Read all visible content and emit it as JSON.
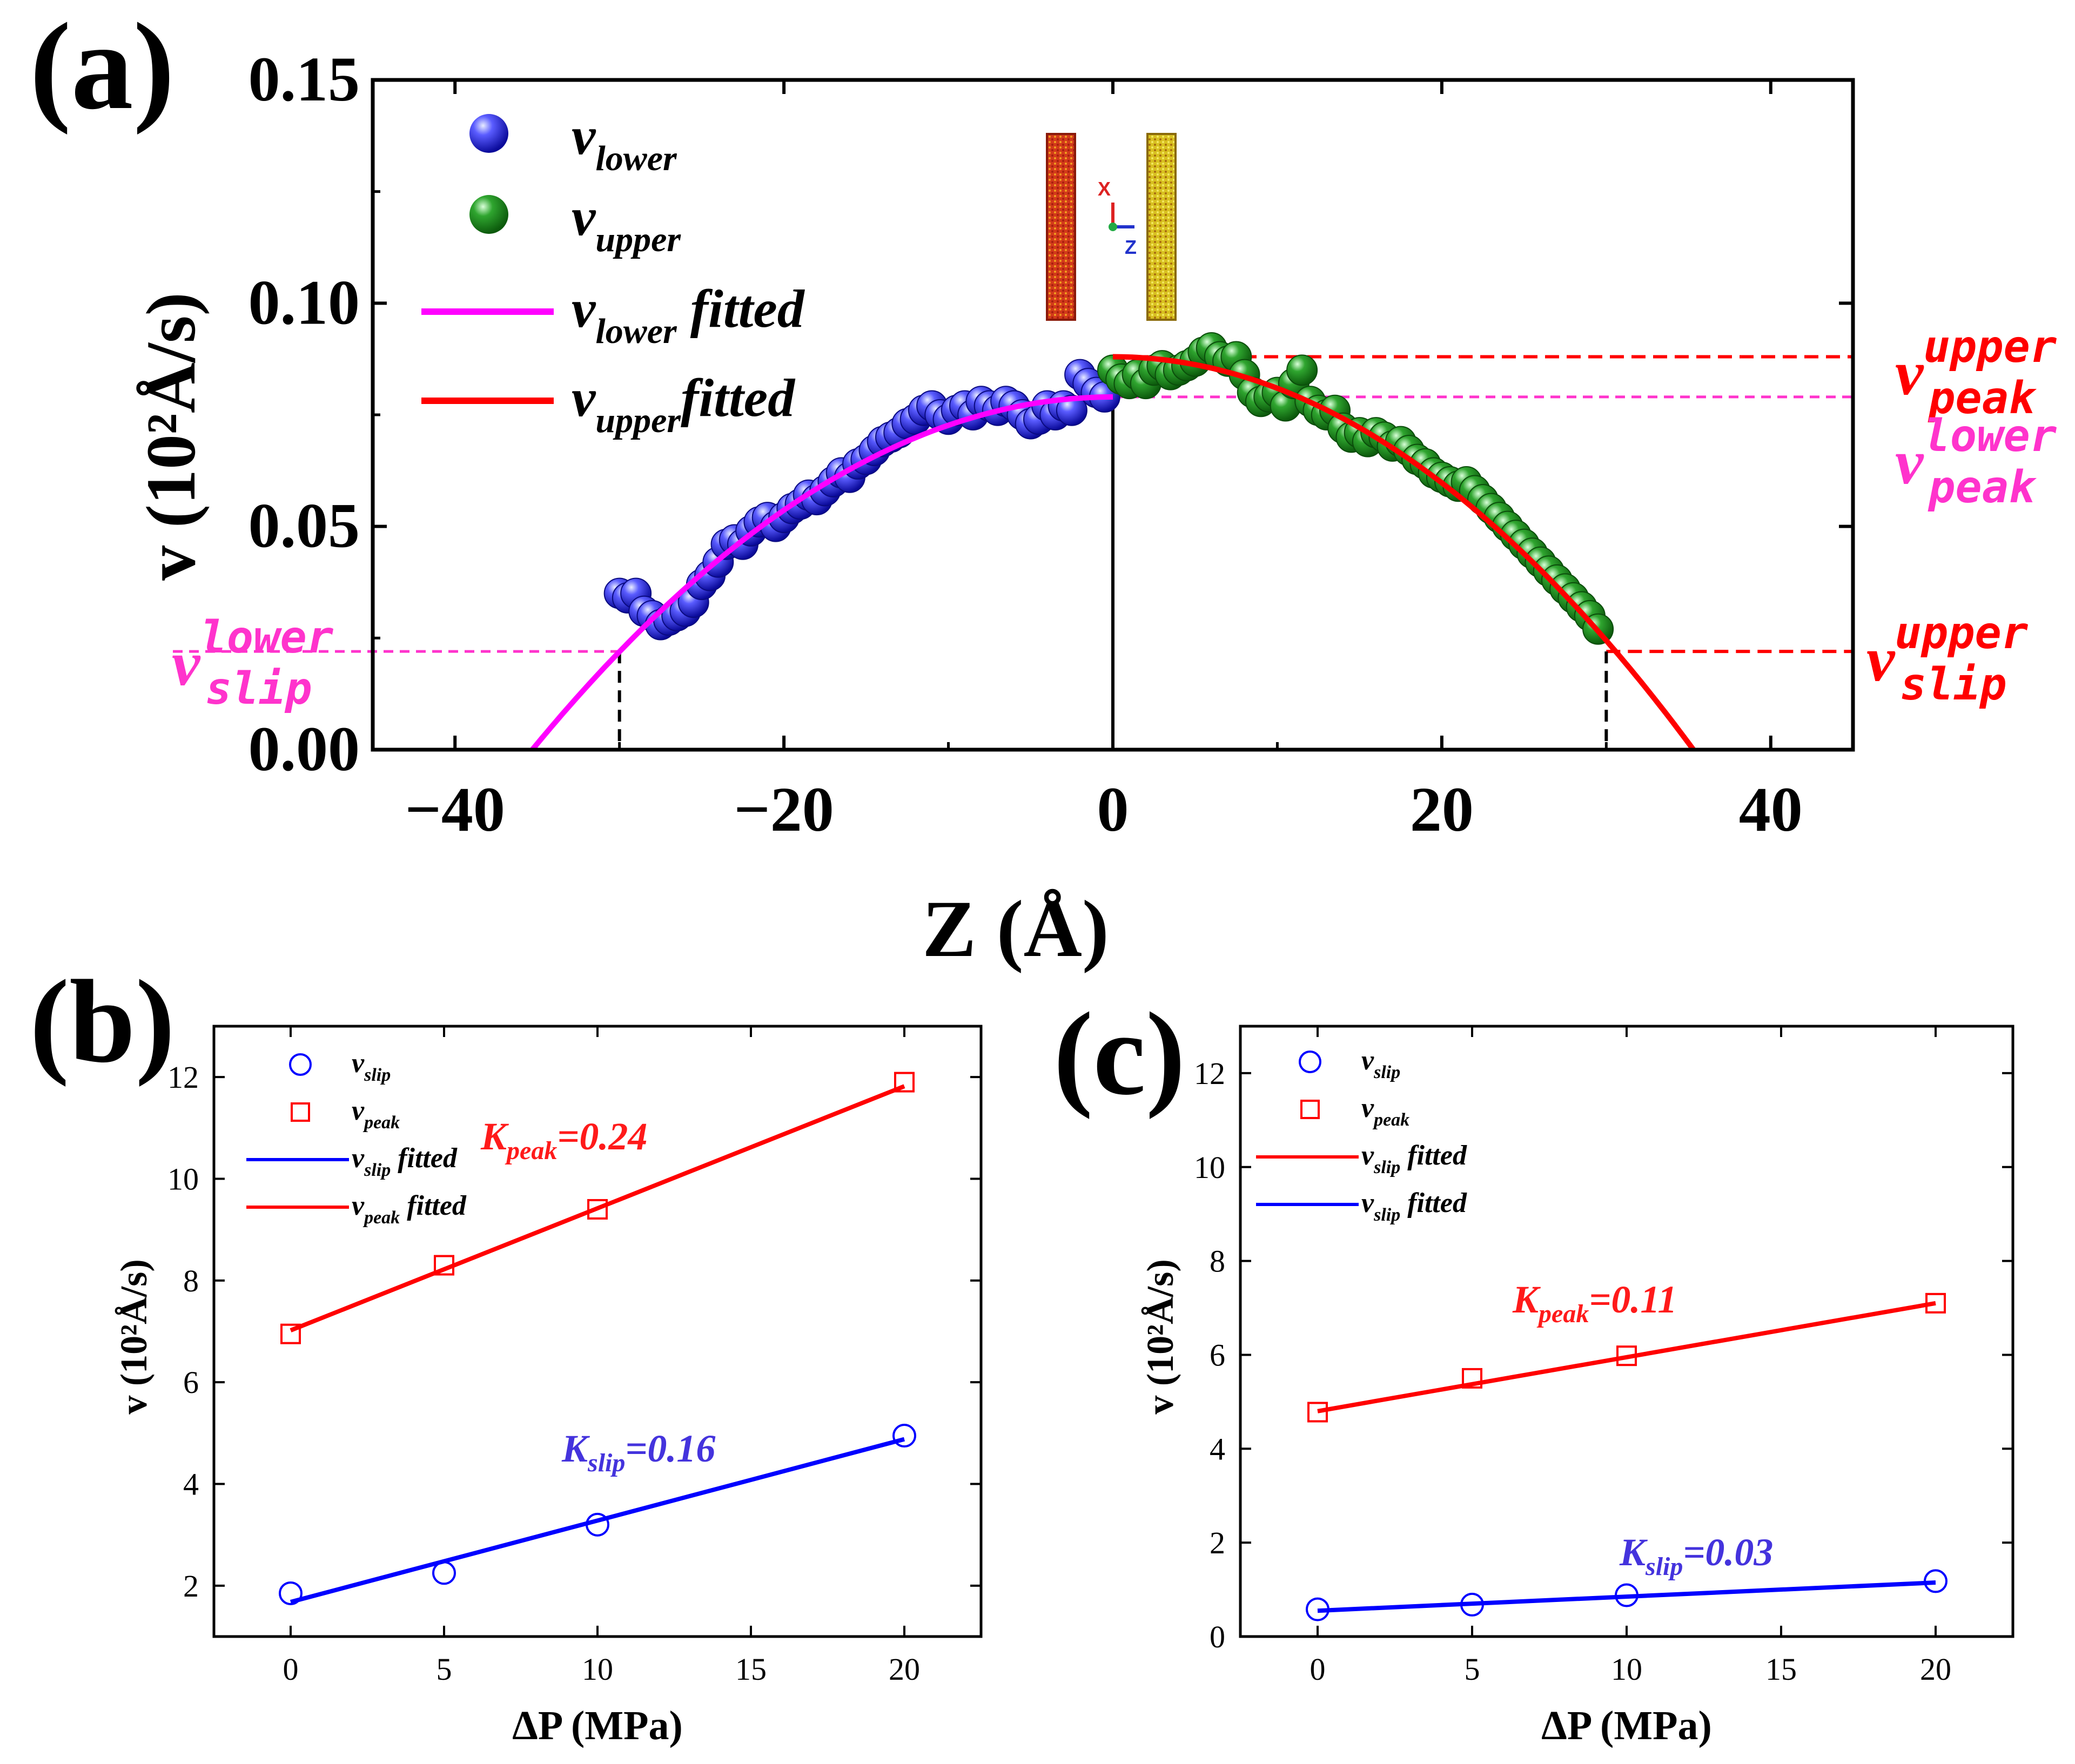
{
  "chart_data": [
    {
      "panel": "(a)",
      "type": "scatter",
      "xlabel": "Z (Å)",
      "ylabel": "v (10²Å/s)",
      "xlim": [
        -45,
        45
      ],
      "ylim": [
        0,
        0.15
      ],
      "xticks": [
        "−40",
        "−20",
        "0",
        "20",
        "40"
      ],
      "yticks": [
        "0.00",
        "0.05",
        "0.10",
        "0.15"
      ],
      "legend_placement": "top-left",
      "legend": [
        {
          "label": "v",
          "sub": "lower",
          "kind": "marker",
          "color": "#1f1fe0"
        },
        {
          "label": "v",
          "sub": "upper",
          "kind": "marker",
          "color": "#1e8a1e"
        },
        {
          "label": "v",
          "sub": "lower",
          "suffix": " fitted",
          "kind": "line",
          "color": "#ff00ff"
        },
        {
          "label": "v",
          "sub": "upper",
          "suffix": "fitted",
          "kind": "line",
          "color": "#ff0000"
        }
      ],
      "inset_axes": {
        "x": "X",
        "z": "Z"
      },
      "annotations": [
        {
          "base": "v",
          "sub": "peak",
          "sup": "upper",
          "color": "#ff0000"
        },
        {
          "base": "v",
          "sub": "peak",
          "sup": "lower",
          "color": "#ff33cc"
        },
        {
          "base": "v",
          "sub": "slip",
          "sup": "upper",
          "color": "#ff0000"
        },
        {
          "base": "v",
          "sub": "slip",
          "sup": "lower",
          "color": "#ff33cc"
        }
      ],
      "series": [
        {
          "name": "v_lower",
          "color": "#1f1fe0",
          "x": [
            -30,
            -29.5,
            -29,
            -28.5,
            -28,
            -27.5,
            -27,
            -26.5,
            -26,
            -25.5,
            -25,
            -24.5,
            -24,
            -23.5,
            -23,
            -22.5,
            -22,
            -21.5,
            -21,
            -20.5,
            -20,
            -19.5,
            -19,
            -18.5,
            -18,
            -17.5,
            -17,
            -16.5,
            -16,
            -15.5,
            -15,
            -14.5,
            -14,
            -13.5,
            -13,
            -12.5,
            -12,
            -11.5,
            -11,
            -10.5,
            -10,
            -9.5,
            -9,
            -8.5,
            -8,
            -7.5,
            -7,
            -6.5,
            -6,
            -5.5,
            -5,
            -4.5,
            -4,
            -3.5,
            -3,
            -2.5,
            -2,
            -1.5,
            -1,
            -0.5
          ],
          "y": [
            0.035,
            0.034,
            0.035,
            0.031,
            0.03,
            0.028,
            0.029,
            0.03,
            0.031,
            0.033,
            0.037,
            0.039,
            0.042,
            0.046,
            0.047,
            0.046,
            0.049,
            0.051,
            0.052,
            0.05,
            0.052,
            0.054,
            0.055,
            0.057,
            0.056,
            0.058,
            0.06,
            0.062,
            0.061,
            0.064,
            0.065,
            0.067,
            0.069,
            0.07,
            0.071,
            0.073,
            0.074,
            0.076,
            0.077,
            0.075,
            0.074,
            0.076,
            0.077,
            0.075,
            0.078,
            0.077,
            0.076,
            0.078,
            0.077,
            0.075,
            0.073,
            0.074,
            0.077,
            0.075,
            0.077,
            0.076,
            0.084,
            0.082,
            0.08,
            0.079
          ]
        },
        {
          "name": "v_upper",
          "color": "#1e8a1e",
          "x": [
            0,
            0.5,
            1,
            1.5,
            2,
            2.5,
            3,
            3.5,
            4,
            4.5,
            5,
            5.5,
            6,
            6.5,
            7,
            7.5,
            8,
            8.5,
            9,
            9.5,
            10,
            10.5,
            11,
            11.5,
            12,
            12.5,
            13,
            13.5,
            14,
            14.5,
            15,
            15.5,
            16,
            16.5,
            17,
            17.5,
            18,
            18.5,
            19,
            19.5,
            20,
            20.5,
            21,
            21.5,
            22,
            22.5,
            23,
            23.5,
            24,
            24.5,
            25,
            25.5,
            26,
            26.5,
            27,
            27.5,
            28,
            28.5,
            29,
            29.5
          ],
          "y": [
            0.085,
            0.083,
            0.082,
            0.084,
            0.082,
            0.085,
            0.086,
            0.084,
            0.085,
            0.086,
            0.087,
            0.089,
            0.09,
            0.088,
            0.087,
            0.088,
            0.084,
            0.08,
            0.078,
            0.079,
            0.08,
            0.077,
            0.082,
            0.085,
            0.078,
            0.076,
            0.075,
            0.076,
            0.072,
            0.07,
            0.071,
            0.069,
            0.071,
            0.07,
            0.068,
            0.069,
            0.067,
            0.065,
            0.064,
            0.062,
            0.061,
            0.06,
            0.059,
            0.06,
            0.058,
            0.056,
            0.054,
            0.052,
            0.05,
            0.048,
            0.046,
            0.044,
            0.042,
            0.04,
            0.038,
            0.036,
            0.034,
            0.032,
            0.03,
            0.027
          ]
        }
      ],
      "fits": [
        {
          "name": "v_lower fitted",
          "color": "#ff00ff",
          "peak": 0.079,
          "root": -35.3,
          "x_range": [
            -35.3,
            0
          ]
        },
        {
          "name": "v_upper fitted",
          "color": "#ff0000",
          "peak": 0.088,
          "root": 35.3,
          "x_range": [
            0,
            35.3
          ]
        }
      ],
      "reference_lines": {
        "v_peak_upper": 0.088,
        "v_peak_lower": 0.079,
        "v_slip_upper": 0.022,
        "v_slip_lower": 0.022,
        "x_wall_left": -30,
        "x_center": 0,
        "x_wall_right": 30
      }
    },
    {
      "panel": "(b)",
      "type": "scatter",
      "xlabel": "ΔP (MPa)",
      "ylabel": "v (10²Å/s)",
      "xlim": [
        -2.5,
        22.5
      ],
      "ylim": [
        1,
        13
      ],
      "xticks": [
        "0",
        "5",
        "10",
        "15",
        "20"
      ],
      "yticks": [
        "2",
        "4",
        "6",
        "8",
        "10",
        "12"
      ],
      "legend_placement": "top-left",
      "legend": [
        {
          "label": "v",
          "sub": "slip",
          "suffix": "",
          "kind": "circle",
          "color": "#0000ff"
        },
        {
          "label": "v",
          "sub": "peak",
          "suffix": "",
          "kind": "square",
          "color": "#ff0000"
        },
        {
          "label": "v",
          "sub": "slip",
          "suffix": " fitted",
          "kind": "line",
          "color": "#0000ff"
        },
        {
          "label": "v",
          "sub": "peak",
          "suffix": " fitted",
          "kind": "line",
          "color": "#ff0000"
        }
      ],
      "annotations": [
        {
          "base": "K",
          "sub": "peak",
          "rest": "=0.24",
          "color": "#ff1a1a"
        },
        {
          "base": "K",
          "sub": "slip",
          "rest": "=0.16",
          "color": "#4433dd"
        }
      ],
      "series": [
        {
          "name": "v_slip",
          "marker": "circle",
          "color": "#0000ff",
          "x": [
            0,
            5,
            10,
            20
          ],
          "y": [
            1.85,
            2.25,
            3.2,
            4.95
          ]
        },
        {
          "name": "v_peak",
          "marker": "square",
          "color": "#ff0000",
          "x": [
            0,
            5,
            10,
            20
          ],
          "y": [
            6.95,
            8.3,
            9.4,
            11.9
          ]
        }
      ],
      "fits": [
        {
          "name": "v_slip fitted",
          "color": "#0000ff",
          "x": [
            0,
            20
          ],
          "y": [
            1.68,
            4.88
          ]
        },
        {
          "name": "v_peak fitted",
          "color": "#ff0000",
          "x": [
            0,
            20
          ],
          "y": [
            7.02,
            11.82
          ]
        }
      ]
    },
    {
      "panel": "(c)",
      "type": "scatter",
      "xlabel": "ΔP (MPa)",
      "ylabel": "v (10²Å/s)",
      "xlim": [
        -2.5,
        22.5
      ],
      "ylim": [
        0,
        13
      ],
      "xticks": [
        "0",
        "5",
        "10",
        "15",
        "20"
      ],
      "yticks": [
        "0",
        "2",
        "4",
        "6",
        "8",
        "10",
        "12"
      ],
      "legend_placement": "top-left",
      "legend": [
        {
          "label": "v",
          "sub": "slip",
          "suffix": "",
          "kind": "circle",
          "color": "#0000ff"
        },
        {
          "label": "v",
          "sub": "peak",
          "suffix": "",
          "kind": "square",
          "color": "#ff0000"
        },
        {
          "label": "v",
          "sub": "slip",
          "suffix": " fitted",
          "kind": "line",
          "color": "#ff0000"
        },
        {
          "label": "v",
          "sub": "slip",
          "suffix": " fitted",
          "kind": "line",
          "color": "#0000ff"
        }
      ],
      "annotations": [
        {
          "base": "K",
          "sub": "peak",
          "rest": "=0.11",
          "color": "#ff1a1a"
        },
        {
          "base": "K",
          "sub": "slip",
          "rest": "=0.03",
          "color": "#4433dd"
        }
      ],
      "series": [
        {
          "name": "v_slip",
          "marker": "circle",
          "color": "#0000ff",
          "x": [
            0,
            5,
            10,
            20
          ],
          "y": [
            0.58,
            0.68,
            0.88,
            1.18
          ]
        },
        {
          "name": "v_peak",
          "marker": "square",
          "color": "#ff0000",
          "x": [
            0,
            5,
            10,
            20
          ],
          "y": [
            4.78,
            5.5,
            5.98,
            7.1
          ]
        }
      ],
      "fits": [
        {
          "name": "v_slip fitted",
          "color": "#0000ff",
          "x": [
            0,
            20
          ],
          "y": [
            0.55,
            1.15
          ]
        },
        {
          "name": "v_peak fitted",
          "color": "#ff0000",
          "x": [
            0,
            20
          ],
          "y": [
            4.8,
            7.1
          ]
        }
      ]
    }
  ]
}
